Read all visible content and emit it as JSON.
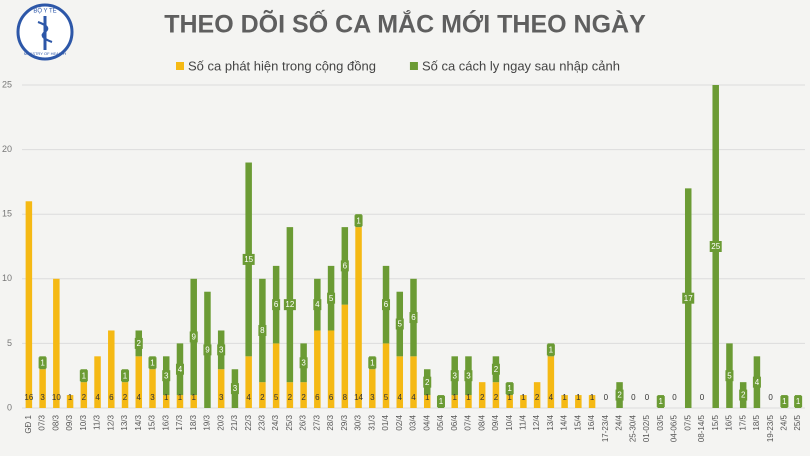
{
  "logo": {
    "top": "BỘ Y TẾ",
    "bottom": "MINISTRY OF HEALTH"
  },
  "chart_data": {
    "type": "stacked_bar",
    "title": "THEO DÕI SỐ CA MẮC MỚI THEO NGÀY",
    "categories": [
      "GĐ 1",
      "07/3",
      "08/3",
      "09/3",
      "10/3",
      "11/3",
      "12/3",
      "13/3",
      "14/3",
      "15/3",
      "16/3",
      "17/3",
      "18/3",
      "19/3",
      "20/3",
      "21/3",
      "22/3",
      "23/3",
      "24/3",
      "25/3",
      "26/3",
      "27/3",
      "28/3",
      "29/3",
      "30/3",
      "31/3",
      "01/4",
      "02/4",
      "03/4",
      "04/4",
      "05/4",
      "06/4",
      "07/4",
      "08/4",
      "09/4",
      "10/4",
      "11/4",
      "12/4",
      "13/4",
      "14/4",
      "15/4",
      "16/4",
      "17-23/4",
      "24/4",
      "25-30/4",
      "01-02/5",
      "03/5",
      "04-06/5",
      "07/5",
      "08-14/5",
      "15/5",
      "16/5",
      "17/5",
      "18/5",
      "19-23/5",
      "24/5",
      "25/5"
    ],
    "series": [
      {
        "name": "Số ca phát hiện trong cộng đồng",
        "color": "#f5b914",
        "values": [
          16,
          3,
          10,
          1,
          2,
          4,
          6,
          2,
          4,
          3,
          1,
          1,
          1,
          0,
          3,
          0,
          4,
          2,
          5,
          2,
          2,
          6,
          6,
          8,
          14,
          3,
          5,
          4,
          4,
          1,
          0,
          1,
          1,
          2,
          2,
          1,
          1,
          2,
          4,
          1,
          1,
          1,
          0,
          0,
          0,
          0,
          0,
          0,
          0,
          0,
          0,
          0,
          0,
          0,
          0,
          0,
          0
        ]
      },
      {
        "name": "Số ca cách ly ngay sau nhập cảnh",
        "color": "#6b9b34",
        "values": [
          0,
          1,
          0,
          0,
          1,
          0,
          0,
          1,
          2,
          1,
          3,
          4,
          9,
          9,
          3,
          3,
          15,
          8,
          6,
          12,
          3,
          4,
          5,
          6,
          1,
          1,
          6,
          5,
          6,
          2,
          1,
          3,
          3,
          0,
          2,
          1,
          0,
          0,
          1,
          0,
          0,
          0,
          0,
          2,
          0,
          0,
          1,
          0,
          17,
          0,
          25,
          5,
          2,
          4,
          0,
          1,
          1
        ]
      }
    ],
    "ylim": [
      0,
      25
    ],
    "yticks": [
      0,
      5,
      10,
      15,
      20,
      25
    ],
    "grid": true
  }
}
